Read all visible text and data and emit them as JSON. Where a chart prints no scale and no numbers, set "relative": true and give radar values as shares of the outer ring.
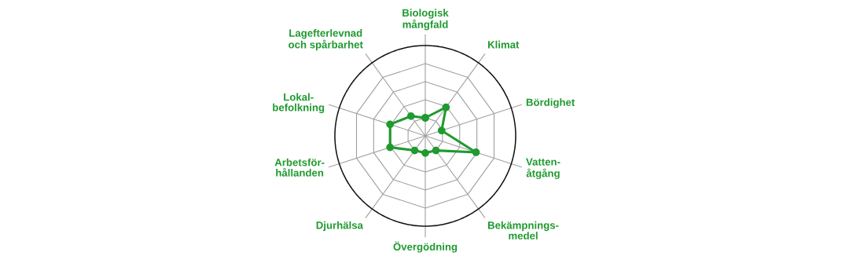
{
  "chart_data": {
    "type": "radar",
    "relative": true,
    "categories": [
      "Biologisk\nmångfald",
      "Klimat",
      "Bördighet",
      "Vatten-\nåtgång",
      "Bekämpnings-\nmedel",
      "Övergödning",
      "Djurhälsa",
      "Arbetsför-\nhållanden",
      "Lokal-\nbefolkning",
      "Lagefterlevnad\noch spårbarhet"
    ],
    "series": [
      {
        "color": "#1f9a2e",
        "values": [
          0.2,
          0.39,
          0.19,
          0.59,
          0.2,
          0.19,
          0.2,
          0.41,
          0.41,
          0.27
        ]
      }
    ],
    "marker": "circle",
    "line_style": "solid",
    "grid": true
  }
}
